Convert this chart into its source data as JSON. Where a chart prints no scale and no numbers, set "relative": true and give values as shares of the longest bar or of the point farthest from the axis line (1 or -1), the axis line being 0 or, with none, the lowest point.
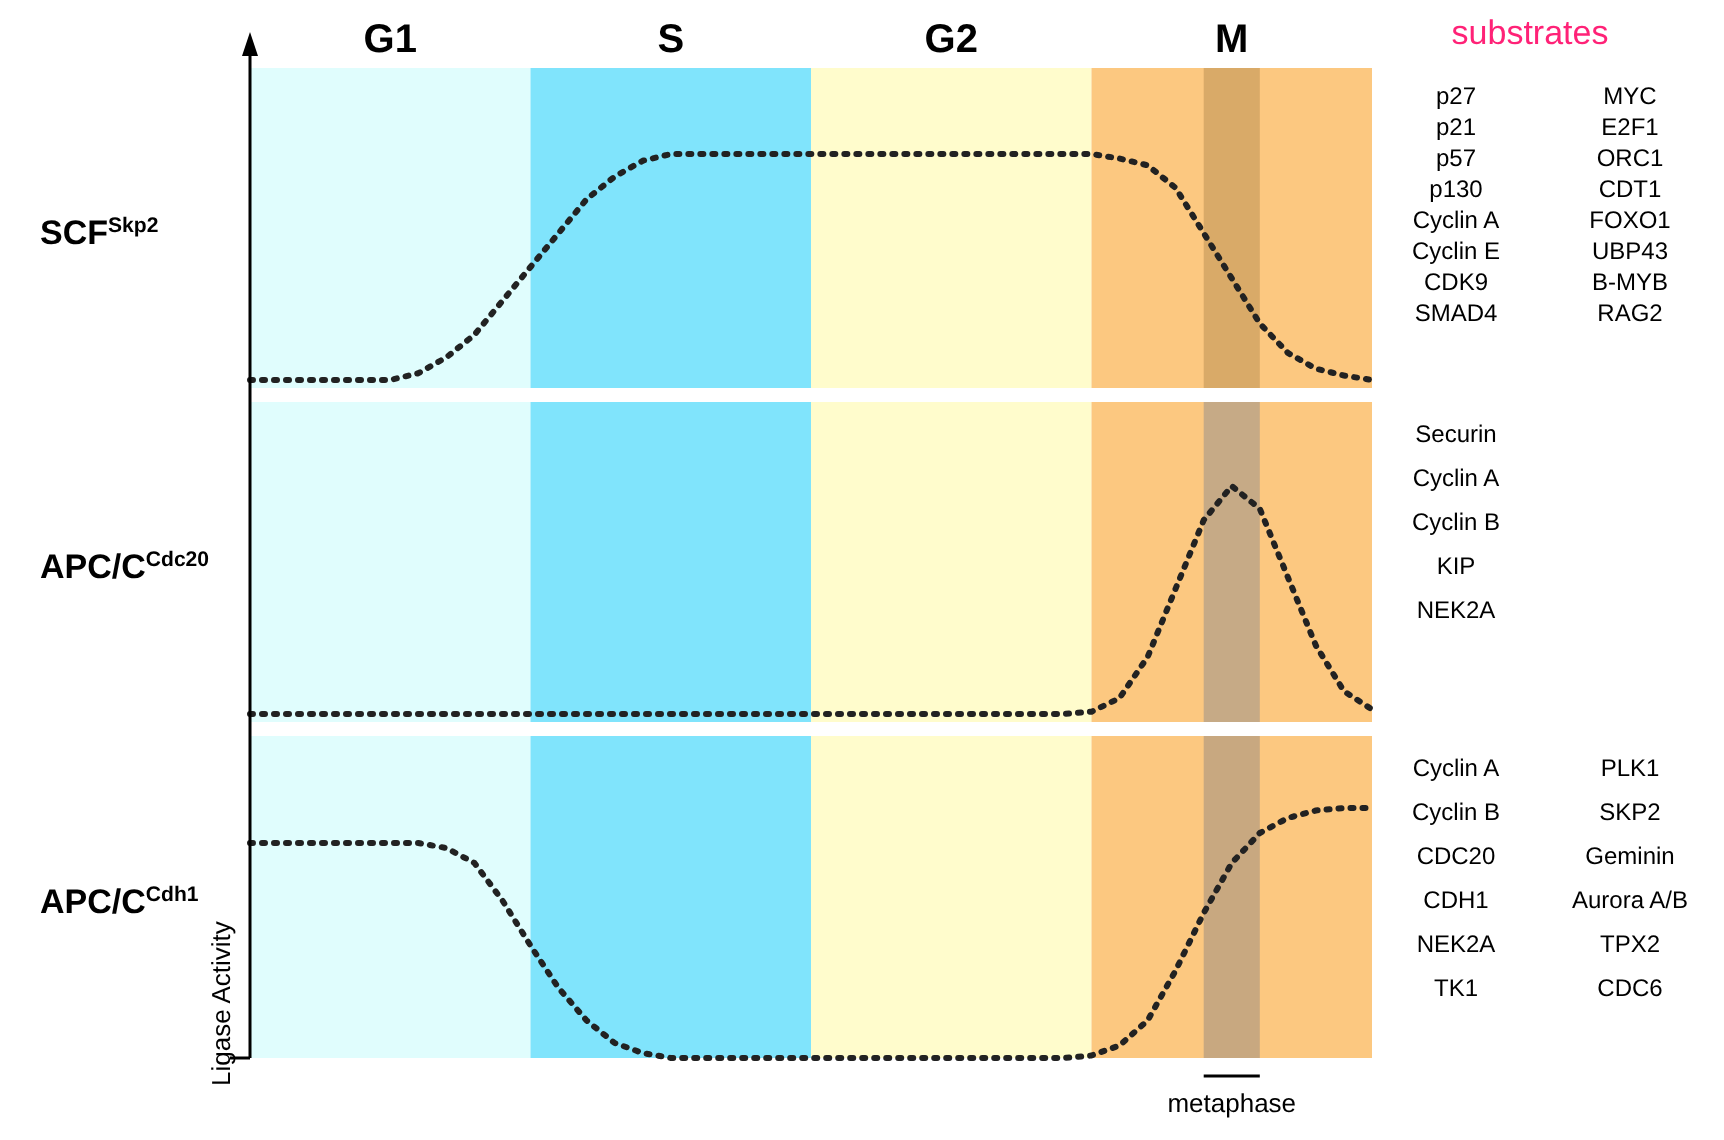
{
  "chart_data": [
    {
      "type": "line",
      "title": "SCF$^{Skp2}$",
      "relative": true,
      "tick_labels": "x",
      "line_style": "dotted",
      "marker": "none",
      "categories": [
        null,
        null,
        null,
        null,
        null,
        "G1",
        null,
        null,
        null,
        null,
        null,
        null,
        null,
        null,
        null,
        "S",
        null,
        null,
        null,
        null,
        null,
        null,
        null,
        null,
        null,
        "G2",
        null,
        null,
        null,
        null,
        null,
        null,
        null,
        null,
        null,
        "M",
        null,
        null,
        null,
        null,
        null
      ],
      "series": [
        {
          "color": "#222222",
          "values": [
            0,
            0,
            0,
            0,
            0,
            0,
            0.03,
            0.1,
            0.2,
            0.35,
            0.5,
            0.65,
            0.8,
            0.9,
            0.97,
            1,
            1,
            1,
            1,
            1,
            1,
            1,
            1,
            1,
            1,
            1,
            1,
            1,
            1,
            1,
            1,
            0.98,
            0.95,
            0.85,
            0.65,
            0.45,
            0.25,
            0.12,
            0.05,
            0.02,
            0
          ]
        }
      ],
      "annotations": [
        "substrates",
        "p27",
        "p21",
        "p57",
        "p130",
        "Cyclin A",
        "Cyclin E",
        "CDK9",
        "SMAD4",
        "MYC",
        "E2F1",
        "ORC1",
        "CDT1",
        "FOXO1",
        "UBP43",
        "B-MYB",
        "RAG2"
      ]
    },
    {
      "type": "line",
      "title": "APC/C$^{Cdc20}$",
      "relative": true,
      "tick_labels": false,
      "line_style": "dotted",
      "marker": "none",
      "categories": [
        null,
        null,
        null,
        null,
        null,
        null,
        null,
        null,
        null,
        null,
        null,
        null,
        null,
        null,
        null,
        null,
        null,
        null,
        null,
        null,
        null,
        null,
        null,
        null,
        null,
        null,
        null,
        null,
        null,
        null,
        null,
        null,
        null,
        null,
        null,
        null,
        null,
        null,
        null,
        null,
        null
      ],
      "series": [
        {
          "color": "#222222",
          "values": [
            0,
            0,
            0,
            0,
            0,
            0,
            0,
            0,
            0,
            0,
            0,
            0,
            0,
            0,
            0,
            0,
            0,
            0,
            0,
            0,
            0,
            0,
            0,
            0,
            0,
            0,
            0,
            0,
            0,
            0,
            0.01,
            0.07,
            0.25,
            0.55,
            0.85,
            1,
            0.9,
            0.6,
            0.3,
            0.1,
            0.02
          ]
        }
      ],
      "annotations": [
        "Securin",
        "Cyclin A",
        "Cyclin B",
        "KIP",
        "NEK2A"
      ]
    },
    {
      "type": "line",
      "title": "APC/C$^{Cdh1}$",
      "ylabel": "Ligase Activity",
      "relative": true,
      "tick_labels": false,
      "line_style": "dotted",
      "marker": "none",
      "categories": [
        null,
        null,
        null,
        null,
        null,
        null,
        null,
        null,
        null,
        null,
        null,
        null,
        null,
        null,
        null,
        null,
        null,
        null,
        null,
        null,
        null,
        null,
        null,
        null,
        null,
        null,
        null,
        null,
        null,
        null,
        null,
        null,
        null,
        null,
        null,
        null,
        null,
        null,
        null,
        null,
        null
      ],
      "series": [
        {
          "color": "#222222",
          "values": [
            0.86,
            0.86,
            0.86,
            0.86,
            0.86,
            0.86,
            0.86,
            0.84,
            0.78,
            0.63,
            0.45,
            0.28,
            0.15,
            0.06,
            0.02,
            0,
            0,
            0,
            0,
            0,
            0,
            0,
            0,
            0,
            0,
            0,
            0,
            0,
            0,
            0,
            0.01,
            0.05,
            0.15,
            0.35,
            0.58,
            0.78,
            0.9,
            0.96,
            0.99,
            1,
            1
          ]
        }
      ],
      "annotations": [
        "Cyclin A",
        "Cyclin B",
        "CDC20",
        "CDH1",
        "NEK2A",
        "TK1",
        "PLK1",
        "SKP2",
        "Geminin",
        "Aurora A/B",
        "TPX2",
        "CDC6",
        "metaphase"
      ]
    }
  ]
}
